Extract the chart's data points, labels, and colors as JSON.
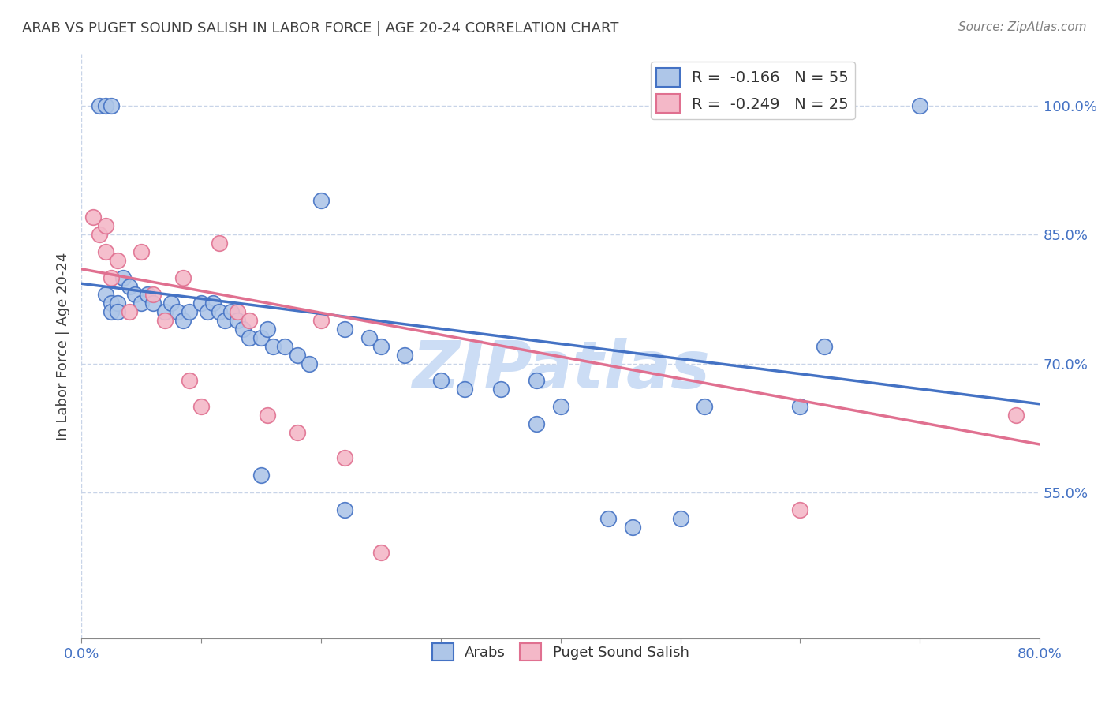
{
  "title": "ARAB VS PUGET SOUND SALISH IN LABOR FORCE | AGE 20-24 CORRELATION CHART",
  "source": "Source: ZipAtlas.com",
  "xlabel": "",
  "ylabel": "In Labor Force | Age 20-24",
  "xlim": [
    0.0,
    0.8
  ],
  "ylim": [
    0.38,
    1.06
  ],
  "yticks": [
    0.55,
    0.7,
    0.85,
    1.0
  ],
  "ytick_labels": [
    "55.0%",
    "70.0%",
    "85.0%",
    "100.0%"
  ],
  "xticks": [
    0.0,
    0.1,
    0.2,
    0.3,
    0.4,
    0.5,
    0.6,
    0.7,
    0.8
  ],
  "xtick_labels": [
    "0.0%",
    "",
    "",
    "",
    "",
    "",
    "",
    "",
    "80.0%"
  ],
  "legend_r_arab": "-0.166",
  "legend_n_arab": "55",
  "legend_r_salish": "-0.249",
  "legend_n_salish": "25",
  "arab_color": "#aec6e8",
  "salish_color": "#f4b8c8",
  "arab_line_color": "#4472c4",
  "salish_line_color": "#e07090",
  "watermark": "ZIPatlas",
  "watermark_color": "#ccddf5",
  "background_color": "#ffffff",
  "grid_color": "#c8d4e8",
  "axis_color": "#4472c4",
  "title_color": "#404040",
  "arab_points_x": [
    0.015,
    0.02,
    0.025,
    0.02,
    0.025,
    0.025,
    0.03,
    0.03,
    0.035,
    0.04,
    0.045,
    0.05,
    0.055,
    0.06,
    0.07,
    0.075,
    0.08,
    0.085,
    0.09,
    0.1,
    0.105,
    0.11,
    0.115,
    0.12,
    0.125,
    0.13,
    0.135,
    0.14,
    0.15,
    0.155,
    0.16,
    0.17,
    0.18,
    0.19,
    0.2,
    0.22,
    0.24,
    0.25,
    0.27,
    0.3,
    0.32,
    0.35,
    0.38,
    0.4,
    0.44,
    0.46,
    0.5,
    0.52,
    0.6,
    0.62,
    0.7,
    0.15,
    0.22,
    0.38
  ],
  "arab_points_y": [
    1.0,
    1.0,
    1.0,
    0.78,
    0.77,
    0.76,
    0.77,
    0.76,
    0.8,
    0.79,
    0.78,
    0.77,
    0.78,
    0.77,
    0.76,
    0.77,
    0.76,
    0.75,
    0.76,
    0.77,
    0.76,
    0.77,
    0.76,
    0.75,
    0.76,
    0.75,
    0.74,
    0.73,
    0.73,
    0.74,
    0.72,
    0.72,
    0.71,
    0.7,
    0.89,
    0.74,
    0.73,
    0.72,
    0.71,
    0.68,
    0.67,
    0.67,
    0.68,
    0.65,
    0.52,
    0.51,
    0.52,
    0.65,
    0.65,
    0.72,
    1.0,
    0.57,
    0.53,
    0.63
  ],
  "salish_points_x": [
    0.01,
    0.015,
    0.02,
    0.02,
    0.025,
    0.03,
    0.04,
    0.05,
    0.06,
    0.07,
    0.085,
    0.09,
    0.1,
    0.115,
    0.13,
    0.14,
    0.155,
    0.18,
    0.2,
    0.22,
    0.25,
    0.6,
    0.78
  ],
  "salish_points_y": [
    0.87,
    0.85,
    0.83,
    0.86,
    0.8,
    0.82,
    0.76,
    0.83,
    0.78,
    0.75,
    0.8,
    0.68,
    0.65,
    0.84,
    0.76,
    0.75,
    0.64,
    0.62,
    0.75,
    0.59,
    0.48,
    0.53,
    0.64
  ],
  "arab_slope": -0.175,
  "salish_slope": -0.255,
  "arab_intercept": 0.793,
  "salish_intercept": 0.81
}
